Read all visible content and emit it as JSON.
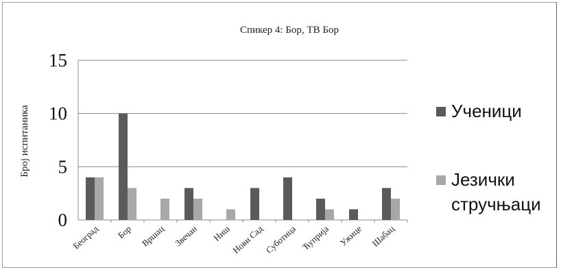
{
  "chart_data": {
    "type": "bar",
    "title": "Спикер 4: Бор, ТВ Бор",
    "xlabel": "",
    "ylabel": "Број испитаника",
    "ylim": [
      0,
      15
    ],
    "yticks": [
      "0",
      "5",
      "10",
      "15"
    ],
    "grid": true,
    "legend_position": "right",
    "categories": [
      "Београд",
      "Бор",
      "Вршац",
      "Звечан",
      "Ниш",
      "Нови Сад",
      "Суботица",
      "Ћуприја",
      "Ужице",
      "Шабац"
    ],
    "series": [
      {
        "name": "Ученици",
        "color": "#5a5a5a",
        "values": [
          4,
          10,
          0,
          3,
          0,
          3,
          4,
          2,
          1,
          3
        ]
      },
      {
        "name": "Језички стручњаци",
        "name_lines": [
          "Језички",
          "стручњаци"
        ],
        "color": "#a8a8a8",
        "values": [
          4,
          3,
          2,
          2,
          1,
          0,
          0,
          1,
          0,
          2
        ]
      }
    ]
  }
}
